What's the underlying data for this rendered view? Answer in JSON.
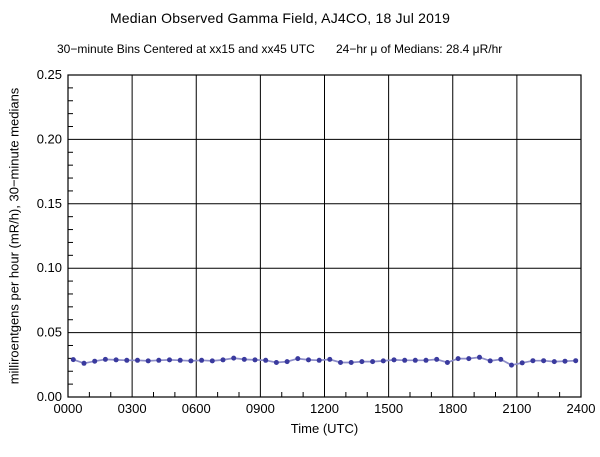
{
  "header": {
    "title": "Median Observed Gamma Field, AJ4CO, 18 Jul 2019",
    "subtitle_left": "30−minute Bins Centered at xx15 and xx45 UTC",
    "subtitle_right": "24−hr μ of Medians: 28.4 μR/hr"
  },
  "chart_data": {
    "type": "line",
    "title": "Median Observed Gamma Field, AJ4CO, 18 Jul 2019",
    "xlabel": "Time (UTC)",
    "ylabel": "milliroentgens per hour (mR/h), 30−minute medians",
    "xlim": [
      0,
      24
    ],
    "ylim": [
      0,
      0.25
    ],
    "grid": true,
    "legend": "none",
    "x_major_hours": [
      0,
      3,
      6,
      9,
      12,
      15,
      18,
      21,
      24
    ],
    "x_major_labels": [
      "0000",
      "0300",
      "0600",
      "0900",
      "1200",
      "1500",
      "1800",
      "2100",
      "2400"
    ],
    "x_minor_step_hours": 1,
    "y_major_values": [
      0,
      0.05,
      0.1,
      0.15,
      0.2,
      0.25
    ],
    "y_major_labels": [
      "0.00",
      "0.05",
      "0.10",
      "0.15",
      "0.20",
      "0.25"
    ],
    "y_minor_step": 0.01,
    "x": [
      0.25,
      0.75,
      1.25,
      1.75,
      2.25,
      2.75,
      3.25,
      3.75,
      4.25,
      4.75,
      5.25,
      5.75,
      6.25,
      6.75,
      7.25,
      7.75,
      8.25,
      8.75,
      9.25,
      9.75,
      10.25,
      10.75,
      11.25,
      11.75,
      12.25,
      12.75,
      13.25,
      13.75,
      14.25,
      14.75,
      15.25,
      15.75,
      16.25,
      16.75,
      17.25,
      17.75,
      18.25,
      18.75,
      19.25,
      19.75,
      20.25,
      20.75,
      21.25,
      21.75,
      22.25,
      22.75,
      23.25,
      23.75
    ],
    "x_time_labels": [
      "0015",
      "0045",
      "0115",
      "0145",
      "0215",
      "0245",
      "0315",
      "0345",
      "0415",
      "0445",
      "0515",
      "0545",
      "0615",
      "0645",
      "0715",
      "0745",
      "0815",
      "0845",
      "0915",
      "0945",
      "1015",
      "1045",
      "1115",
      "1145",
      "1215",
      "1245",
      "1315",
      "1345",
      "1415",
      "1445",
      "1515",
      "1545",
      "1615",
      "1645",
      "1715",
      "1745",
      "1815",
      "1845",
      "1915",
      "1945",
      "2015",
      "2045",
      "2115",
      "2145",
      "2215",
      "2245",
      "2315",
      "2345"
    ],
    "values": [
      0.029,
      0.0262,
      0.0278,
      0.0292,
      0.0288,
      0.0285,
      0.0285,
      0.028,
      0.0285,
      0.0288,
      0.0285,
      0.028,
      0.0285,
      0.028,
      0.0288,
      0.0302,
      0.0292,
      0.0288,
      0.0285,
      0.0268,
      0.0275,
      0.0298,
      0.0288,
      0.0285,
      0.0292,
      0.0268,
      0.0268,
      0.0275,
      0.0275,
      0.028,
      0.0288,
      0.0285,
      0.0285,
      0.0285,
      0.0292,
      0.0268,
      0.0298,
      0.0298,
      0.0308,
      0.028,
      0.0292,
      0.0248,
      0.0265,
      0.0282,
      0.0282,
      0.0275,
      0.0278,
      0.0282
    ],
    "mean_of_medians_uR_hr": 28.4,
    "colors": {
      "background": "#ffffff",
      "axis": "#000000",
      "text": "#000000",
      "line": "#8c8cc8",
      "point": "#3a3a9e"
    }
  }
}
